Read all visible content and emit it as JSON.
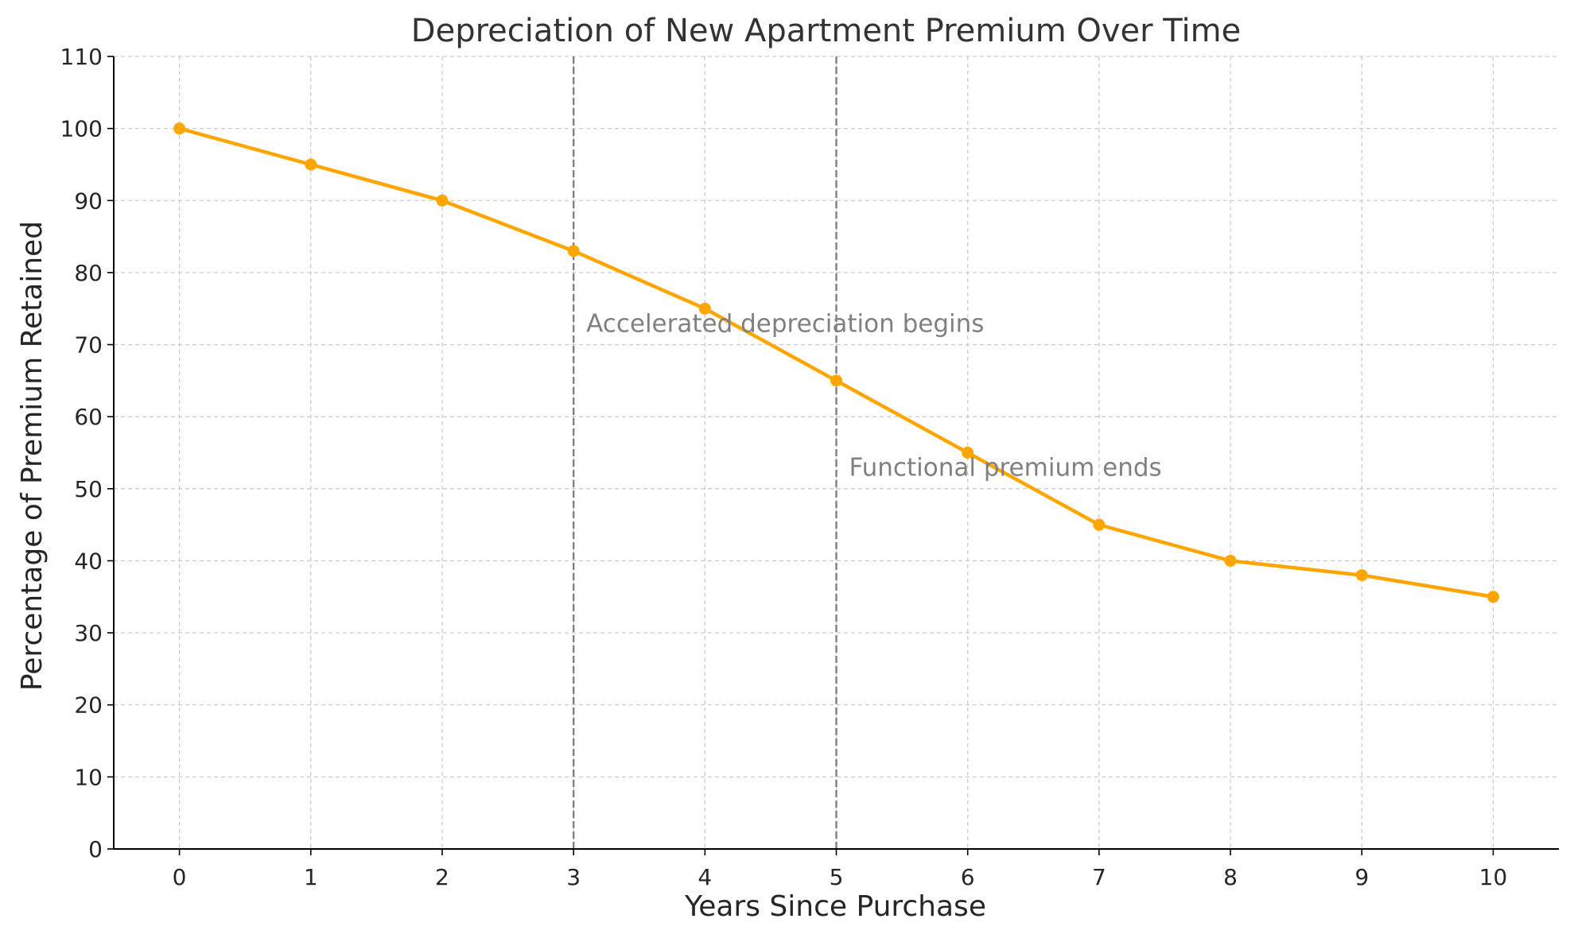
{
  "chart_data": {
    "type": "line",
    "title": "Depreciation of New Apartment Premium Over Time",
    "xlabel": "Years Since Purchase",
    "ylabel": "Percentage of Premium Retained",
    "x": [
      0,
      1,
      2,
      3,
      4,
      5,
      6,
      7,
      8,
      9,
      10
    ],
    "series": [
      {
        "values": [
          100,
          95,
          90,
          83,
          75,
          65,
          55,
          45,
          40,
          38,
          35
        ],
        "color": "#FFA500"
      }
    ],
    "xlim": [
      -0.5,
      10.5
    ],
    "ylim": [
      0,
      110
    ],
    "x_ticks": [
      0,
      1,
      2,
      3,
      4,
      5,
      6,
      7,
      8,
      9,
      10
    ],
    "y_ticks": [
      0,
      10,
      20,
      30,
      40,
      50,
      60,
      70,
      80,
      90,
      100,
      110
    ],
    "grid": true,
    "vlines": [
      {
        "x": 3,
        "label": "Accelerated depreciation begins",
        "label_y": 73
      },
      {
        "x": 5,
        "label": "Functional premium ends",
        "label_y": 53
      }
    ],
    "colors": {
      "line": "#FFA500",
      "vline": "#808080",
      "grid": "#cccccc",
      "annotation": "#808080"
    }
  }
}
